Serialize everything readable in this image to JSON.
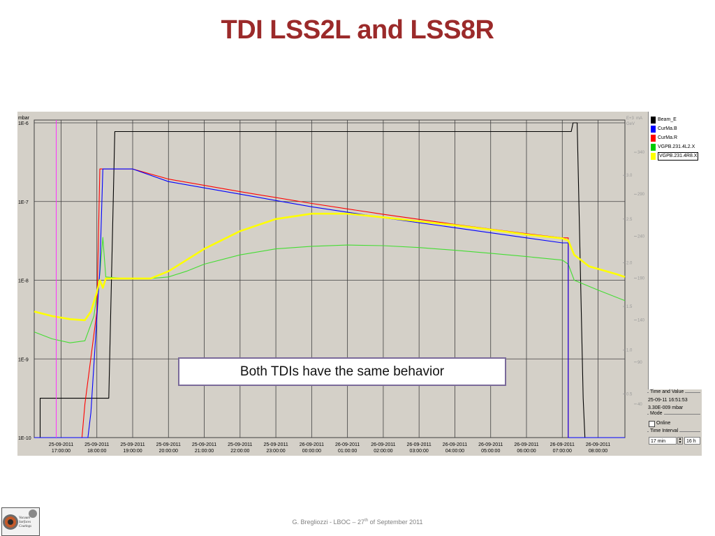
{
  "slide": {
    "title": "TDI LSS2L and LSS8R",
    "callout": "Both TDIs have the same behavior",
    "footer_main": "G. Bregliozzi - LBOC – 27",
    "footer_sup": "th",
    "footer_tail": " of September 2011",
    "logo_lines": [
      "Vacuum",
      "Surfaces",
      "Coatings"
    ]
  },
  "legend": {
    "items": [
      {
        "label": "Beam_E",
        "color": "#000000",
        "selected": false
      },
      {
        "label": "CurMa.B",
        "color": "#0000ff",
        "selected": false
      },
      {
        "label": "CurMa.R",
        "color": "#ff0000",
        "selected": false
      },
      {
        "label": "VGPB.231.4L2.X",
        "color": "#00cc00",
        "selected": false
      },
      {
        "label": "VGPB.231.4R8.X",
        "color": "#ffff00",
        "selected": true
      }
    ]
  },
  "controls": {
    "time_value_title": "Time and Value",
    "time_value_date": "25-09-11 16:51:53",
    "time_value_reading": "3.30E-009 mbar",
    "mode_title": "Mode",
    "online_label": "Online",
    "online_checked": false,
    "interval_title": "Time Interval",
    "interval_value": "17 min",
    "interval_right": "16 h"
  },
  "chart_data": {
    "type": "line",
    "left_axis": {
      "unit_label": "mbar",
      "scale": "log",
      "ticks": [
        "1E-6",
        "1E-7",
        "1E-8",
        "1E-9",
        "1E-10"
      ],
      "range": [
        1e-10,
        1e-06
      ]
    },
    "right_axis_1": {
      "header_line1": "E+3",
      "header_line2": "GeV",
      "ticks": [
        "3.0",
        "2.5",
        "2.0",
        "1.5",
        "1.0",
        "0.5"
      ]
    },
    "right_axis_2": {
      "header": "mA",
      "ticks": [
        "340",
        "290",
        "240",
        "190",
        "140",
        "90",
        "40"
      ]
    },
    "x_axis": {
      "ticks": [
        {
          "date": "25-09-2011",
          "time": "17:00:00"
        },
        {
          "date": "25-09-2011",
          "time": "18:00:00"
        },
        {
          "date": "25-09-2011",
          "time": "19:00:00"
        },
        {
          "date": "25-09-2011",
          "time": "20:00:00"
        },
        {
          "date": "25-09-2011",
          "time": "21:00:00"
        },
        {
          "date": "25-09-2011",
          "time": "22:00:00"
        },
        {
          "date": "25-09-2011",
          "time": "23:00:00"
        },
        {
          "date": "26-09-2011",
          "time": "00:00:00"
        },
        {
          "date": "26-09-2011",
          "time": "01:00:00"
        },
        {
          "date": "26-09-2011",
          "time": "02:00:00"
        },
        {
          "date": "26-09-2011",
          "time": "03:00:00"
        },
        {
          "date": "26-09-2011",
          "time": "04:00:00"
        },
        {
          "date": "26-09-2011",
          "time": "05:00:00"
        },
        {
          "date": "26-09-2011",
          "time": "06:00:00"
        },
        {
          "date": "26-09-2011",
          "time": "07:00:00"
        },
        {
          "date": "26-09-2011",
          "time": "08:00:00"
        }
      ]
    },
    "cursor_time": "25-09-2011 16:51:53",
    "grid": true,
    "series": [
      {
        "name": "Beam_E",
        "color": "#000000",
        "axis": "energy_E+3_GeV",
        "points": [
          [
            "25-09-2011 16:15",
            0.0
          ],
          [
            "25-09-2011 16:25",
            0.0
          ],
          [
            "25-09-2011 16:25",
            0.45
          ],
          [
            "25-09-2011 17:45",
            0.45
          ],
          [
            "25-09-2011 17:45",
            0.45
          ],
          [
            "25-09-2011 18:00",
            0.45
          ],
          [
            "25-09-2011 18:20",
            0.45
          ],
          [
            "25-09-2011 18:30",
            3.5
          ],
          [
            "26-09-2011 07:15",
            3.5
          ],
          [
            "26-09-2011 07:18",
            3.6
          ],
          [
            "26-09-2011 07:25",
            3.6
          ],
          [
            "26-09-2011 07:35",
            0.45
          ],
          [
            "26-09-2011 07:38",
            0.0
          ],
          [
            "26-09-2011 08:45",
            0.0
          ]
        ]
      },
      {
        "name": "CurMa.B",
        "color": "#0000ff",
        "axis": "current_mA",
        "points": [
          [
            "25-09-2011 16:15",
            0
          ],
          [
            "25-09-2011 17:45",
            0
          ],
          [
            "25-09-2011 17:50",
            30
          ],
          [
            "25-09-2011 18:05",
            200
          ],
          [
            "25-09-2011 18:10",
            320
          ],
          [
            "25-09-2011 19:00",
            320
          ],
          [
            "25-09-2011 20:00",
            305
          ],
          [
            "25-09-2011 22:00",
            290
          ],
          [
            "26-09-2011 00:00",
            275
          ],
          [
            "26-09-2011 02:00",
            262
          ],
          [
            "26-09-2011 04:00",
            250
          ],
          [
            "26-09-2011 06:00",
            238
          ],
          [
            "26-09-2011 07:00",
            232
          ],
          [
            "26-09-2011 07:10",
            232
          ],
          [
            "26-09-2011 07:10",
            0
          ],
          [
            "26-09-2011 08:45",
            0
          ]
        ]
      },
      {
        "name": "CurMa.R",
        "color": "#ff0000",
        "axis": "current_mA",
        "points": [
          [
            "25-09-2011 16:15",
            0
          ],
          [
            "25-09-2011 17:35",
            0
          ],
          [
            "25-09-2011 17:40",
            40
          ],
          [
            "25-09-2011 18:00",
            150
          ],
          [
            "25-09-2011 18:05",
            320
          ],
          [
            "25-09-2011 19:00",
            320
          ],
          [
            "25-09-2011 20:00",
            308
          ],
          [
            "25-09-2011 22:00",
            293
          ],
          [
            "26-09-2011 00:00",
            279
          ],
          [
            "26-09-2011 02:00",
            266
          ],
          [
            "26-09-2011 04:00",
            254
          ],
          [
            "26-09-2011 06:00",
            243
          ],
          [
            "26-09-2011 07:00",
            238
          ],
          [
            "26-09-2011 07:10",
            238
          ],
          [
            "26-09-2011 07:10",
            0
          ],
          [
            "26-09-2011 08:45",
            0
          ]
        ]
      },
      {
        "name": "VGPB.231.4L2.X",
        "color": "#44dd33",
        "axis": "pressure_mbar",
        "points": [
          [
            "25-09-2011 16:15",
            2.2e-09
          ],
          [
            "25-09-2011 16:45",
            1.8e-09
          ],
          [
            "25-09-2011 17:15",
            1.6e-09
          ],
          [
            "25-09-2011 17:40",
            1.7e-09
          ],
          [
            "25-09-2011 17:55",
            3.5e-09
          ],
          [
            "25-09-2011 18:05",
            1.2e-08
          ],
          [
            "25-09-2011 18:10",
            3.5e-08
          ],
          [
            "25-09-2011 18:15",
            1.1e-08
          ],
          [
            "25-09-2011 18:45",
            1.05e-08
          ],
          [
            "25-09-2011 19:30",
            1.05e-08
          ],
          [
            "25-09-2011 20:00",
            1.1e-08
          ],
          [
            "25-09-2011 20:30",
            1.3e-08
          ],
          [
            "25-09-2011 21:00",
            1.6e-08
          ],
          [
            "25-09-2011 22:00",
            2.1e-08
          ],
          [
            "25-09-2011 23:00",
            2.5e-08
          ],
          [
            "26-09-2011 00:00",
            2.7e-08
          ],
          [
            "26-09-2011 01:00",
            2.8e-08
          ],
          [
            "26-09-2011 02:00",
            2.75e-08
          ],
          [
            "26-09-2011 03:00",
            2.6e-08
          ],
          [
            "26-09-2011 04:00",
            2.4e-08
          ],
          [
            "26-09-2011 05:00",
            2.2e-08
          ],
          [
            "26-09-2011 06:00",
            2e-08
          ],
          [
            "26-09-2011 07:00",
            1.8e-08
          ],
          [
            "26-09-2011 07:10",
            1.6e-08
          ],
          [
            "26-09-2011 07:20",
            1e-08
          ],
          [
            "26-09-2011 08:00",
            7.5e-09
          ],
          [
            "26-09-2011 08:45",
            5.5e-09
          ]
        ]
      },
      {
        "name": "VGPB.231.4R8.X",
        "color": "#ffff00",
        "axis": "pressure_mbar",
        "points": [
          [
            "25-09-2011 16:15",
            4e-09
          ],
          [
            "25-09-2011 16:45",
            3.5e-09
          ],
          [
            "25-09-2011 17:15",
            3.2e-09
          ],
          [
            "25-09-2011 17:40",
            3.1e-09
          ],
          [
            "25-09-2011 17:50",
            4e-09
          ],
          [
            "25-09-2011 18:00",
            7e-09
          ],
          [
            "25-09-2011 18:05",
            1e-08
          ],
          [
            "25-09-2011 18:10",
            8e-09
          ],
          [
            "25-09-2011 18:15",
            1.05e-08
          ],
          [
            "25-09-2011 18:45",
            1.05e-08
          ],
          [
            "25-09-2011 19:30",
            1.05e-08
          ],
          [
            "25-09-2011 20:00",
            1.3e-08
          ],
          [
            "25-09-2011 20:30",
            1.8e-08
          ],
          [
            "25-09-2011 21:00",
            2.5e-08
          ],
          [
            "25-09-2011 22:00",
            4.2e-08
          ],
          [
            "25-09-2011 23:00",
            6e-08
          ],
          [
            "26-09-2011 00:00",
            7e-08
          ],
          [
            "26-09-2011 01:00",
            7e-08
          ],
          [
            "26-09-2011 02:00",
            6.3e-08
          ],
          [
            "26-09-2011 03:00",
            5.6e-08
          ],
          [
            "26-09-2011 04:00",
            5e-08
          ],
          [
            "26-09-2011 05:00",
            4.4e-08
          ],
          [
            "26-09-2011 06:00",
            3.8e-08
          ],
          [
            "26-09-2011 07:00",
            3.4e-08
          ],
          [
            "26-09-2011 07:10",
            3.2e-08
          ],
          [
            "26-09-2011 07:20",
            2.1e-08
          ],
          [
            "26-09-2011 07:45",
            1.5e-08
          ],
          [
            "26-09-2011 08:30",
            1.2e-08
          ],
          [
            "26-09-2011 08:45",
            1.1e-08
          ]
        ]
      }
    ]
  }
}
